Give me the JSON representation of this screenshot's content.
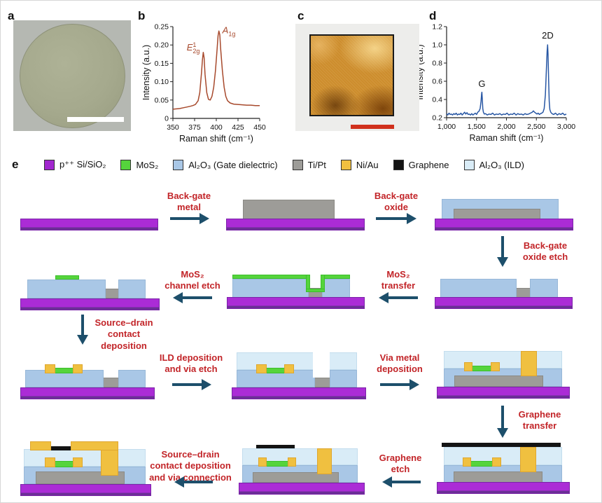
{
  "figure": {
    "panel_labels": {
      "a": "a",
      "b": "b",
      "c": "c",
      "d": "d",
      "e": "e"
    }
  },
  "colors": {
    "substrate_purple": "#a227cf",
    "mos2_green": "#55d43c",
    "gate_oxide_blue": "#a9c7e6",
    "metal_gray": "#9d9c98",
    "contact_yellow": "#f0c040",
    "graphene_black": "#141414",
    "ild_light_blue": "#d9ecf7",
    "arrow_teal": "#1d4f6b",
    "step_label_red": "#c22428",
    "scale_bar_a": "#ffffff",
    "scale_bar_c": "#d0301c",
    "raman_mos2_line": "#a7492c",
    "raman_graphene_line": "#2857a4"
  },
  "legend": {
    "items": [
      {
        "label": "p⁺⁺ Si/SiO₂",
        "color": "#a227cf"
      },
      {
        "label": "MoS₂",
        "color": "#55d43c"
      },
      {
        "label": "Al₂O₃ (Gate dielectric)",
        "color": "#a9c7e6"
      },
      {
        "label": "Ti/Pt",
        "color": "#9d9c98"
      },
      {
        "label": "Ni/Au",
        "color": "#f0c040"
      },
      {
        "label": "Graphene",
        "color": "#141414"
      },
      {
        "label": "Al₂O₃ (ILD)",
        "color": "#d9ecf7"
      }
    ]
  },
  "steps": {
    "back_gate_metal": "Back-gate\nmetal",
    "back_gate_oxide": "Back-gate\noxide",
    "back_gate_oxide_etch": "Back-gate\noxide etch",
    "mos2_transfer": "MoS₂\ntransfer",
    "mos2_channel_etch": "MoS₂\nchannel etch",
    "sd_contact_deposition": "Source–drain\ncontact\ndeposition",
    "ild_deposition_via_etch": "ILD deposition\nand via etch",
    "via_metal_deposition": "Via metal\ndeposition",
    "graphene_transfer": "Graphene\ntransfer",
    "graphene_etch": "Graphene\netch",
    "sd_contact_via_connection": "Source–drain\ncontact deposition\nand via connection"
  },
  "chart_data": [
    {
      "id": "raman_mos2",
      "type": "line",
      "panel": "b",
      "xlabel": "Raman shift (cm⁻¹)",
      "ylabel": "Intensity (a.u.)",
      "xlim": [
        350,
        450
      ],
      "ylim": [
        0,
        0.25
      ],
      "xticks": [
        350,
        375,
        400,
        425,
        450
      ],
      "xtick_labels": [
        "350",
        "375",
        "400",
        "425",
        "450"
      ],
      "yticks": [
        0,
        0.05,
        0.1,
        0.15,
        0.2,
        0.25
      ],
      "ytick_labels": [
        "0",
        "0.05",
        "0.10",
        "0.15",
        "0.20",
        "0.25"
      ],
      "line_color": "#a7492c",
      "grid": false,
      "annotations": [
        {
          "base": "E",
          "sup": "1",
          "sub": "2g",
          "italic": true,
          "x": 381,
          "y": 0.185,
          "anchor": "end",
          "color": "#a7492c"
        },
        {
          "base": "A",
          "sub": "1g",
          "italic": true,
          "x": 407,
          "y": 0.232,
          "anchor": "start",
          "color": "#a7492c"
        }
      ],
      "points": [
        [
          350,
          0.025
        ],
        [
          354,
          0.026
        ],
        [
          358,
          0.027
        ],
        [
          362,
          0.029
        ],
        [
          366,
          0.031
        ],
        [
          370,
          0.033
        ],
        [
          373,
          0.035
        ],
        [
          376,
          0.038
        ],
        [
          379,
          0.048
        ],
        [
          381,
          0.07
        ],
        [
          383,
          0.125
        ],
        [
          384,
          0.16
        ],
        [
          385,
          0.18
        ],
        [
          386,
          0.165
        ],
        [
          387,
          0.12
        ],
        [
          389,
          0.07
        ],
        [
          391,
          0.052
        ],
        [
          393,
          0.05
        ],
        [
          395,
          0.06
        ],
        [
          397,
          0.085
        ],
        [
          399,
          0.13
        ],
        [
          401,
          0.19
        ],
        [
          402,
          0.225
        ],
        [
          403,
          0.238
        ],
        [
          404,
          0.228
        ],
        [
          405,
          0.19
        ],
        [
          407,
          0.13
        ],
        [
          409,
          0.085
        ],
        [
          411,
          0.06
        ],
        [
          413,
          0.048
        ],
        [
          416,
          0.042
        ],
        [
          420,
          0.039
        ],
        [
          425,
          0.038
        ],
        [
          430,
          0.037
        ],
        [
          435,
          0.036
        ],
        [
          440,
          0.036
        ],
        [
          445,
          0.035
        ],
        [
          450,
          0.035
        ]
      ]
    },
    {
      "id": "raman_graphene",
      "type": "line",
      "panel": "d",
      "xlabel": "Raman shift (cm⁻¹)",
      "ylabel": "Intensity (a.u.)",
      "xlim": [
        1000,
        3000
      ],
      "ylim": [
        0.2,
        1.2
      ],
      "xticks": [
        1000,
        1500,
        2000,
        2500,
        3000
      ],
      "xtick_labels": [
        "1,000",
        "1,500",
        "2,000",
        "2,500",
        "3,000"
      ],
      "yticks": [
        0.2,
        0.4,
        0.6,
        0.8,
        1.0,
        1.2
      ],
      "ytick_labels": [
        "0.2",
        "0.4",
        "0.6",
        "0.8",
        "1.0",
        "1.2"
      ],
      "line_color": "#2857a4",
      "grid": false,
      "annotations": [
        {
          "base": "G",
          "x": 1590,
          "y": 0.54,
          "anchor": "middle",
          "color": "#111111"
        },
        {
          "base": "2D",
          "x": 2690,
          "y": 1.07,
          "anchor": "middle",
          "color": "#111111"
        }
      ],
      "points": [
        [
          1000,
          0.245
        ],
        [
          1020,
          0.23
        ],
        [
          1040,
          0.25
        ],
        [
          1060,
          0.235
        ],
        [
          1080,
          0.24
        ],
        [
          1100,
          0.23
        ],
        [
          1120,
          0.245
        ],
        [
          1140,
          0.235
        ],
        [
          1160,
          0.25
        ],
        [
          1180,
          0.23
        ],
        [
          1200,
          0.24
        ],
        [
          1220,
          0.235
        ],
        [
          1240,
          0.25
        ],
        [
          1260,
          0.23
        ],
        [
          1280,
          0.245
        ],
        [
          1300,
          0.26
        ],
        [
          1320,
          0.24
        ],
        [
          1340,
          0.255
        ],
        [
          1360,
          0.235
        ],
        [
          1380,
          0.24
        ],
        [
          1400,
          0.23
        ],
        [
          1420,
          0.245
        ],
        [
          1440,
          0.23
        ],
        [
          1460,
          0.24
        ],
        [
          1480,
          0.25
        ],
        [
          1500,
          0.235
        ],
        [
          1520,
          0.26
        ],
        [
          1540,
          0.27
        ],
        [
          1560,
          0.3
        ],
        [
          1575,
          0.38
        ],
        [
          1585,
          0.46
        ],
        [
          1590,
          0.48
        ],
        [
          1595,
          0.42
        ],
        [
          1605,
          0.3
        ],
        [
          1615,
          0.26
        ],
        [
          1630,
          0.24
        ],
        [
          1650,
          0.245
        ],
        [
          1680,
          0.23
        ],
        [
          1710,
          0.24
        ],
        [
          1740,
          0.235
        ],
        [
          1770,
          0.25
        ],
        [
          1800,
          0.23
        ],
        [
          1830,
          0.24
        ],
        [
          1860,
          0.235
        ],
        [
          1890,
          0.245
        ],
        [
          1920,
          0.23
        ],
        [
          1950,
          0.24
        ],
        [
          1980,
          0.235
        ],
        [
          2010,
          0.25
        ],
        [
          2040,
          0.23
        ],
        [
          2070,
          0.24
        ],
        [
          2100,
          0.235
        ],
        [
          2130,
          0.25
        ],
        [
          2160,
          0.23
        ],
        [
          2190,
          0.245
        ],
        [
          2220,
          0.235
        ],
        [
          2250,
          0.24
        ],
        [
          2280,
          0.23
        ],
        [
          2310,
          0.245
        ],
        [
          2340,
          0.235
        ],
        [
          2370,
          0.24
        ],
        [
          2400,
          0.25
        ],
        [
          2430,
          0.26
        ],
        [
          2450,
          0.275
        ],
        [
          2470,
          0.26
        ],
        [
          2490,
          0.25
        ],
        [
          2510,
          0.24
        ],
        [
          2530,
          0.25
        ],
        [
          2550,
          0.235
        ],
        [
          2570,
          0.245
        ],
        [
          2590,
          0.25
        ],
        [
          2610,
          0.26
        ],
        [
          2630,
          0.3
        ],
        [
          2650,
          0.45
        ],
        [
          2665,
          0.7
        ],
        [
          2680,
          0.93
        ],
        [
          2688,
          1.0
        ],
        [
          2695,
          0.9
        ],
        [
          2705,
          0.6
        ],
        [
          2715,
          0.38
        ],
        [
          2725,
          0.29
        ],
        [
          2740,
          0.26
        ],
        [
          2760,
          0.245
        ],
        [
          2790,
          0.235
        ],
        [
          2820,
          0.25
        ],
        [
          2850,
          0.23
        ],
        [
          2880,
          0.245
        ],
        [
          2910,
          0.235
        ],
        [
          2940,
          0.25
        ],
        [
          2970,
          0.23
        ],
        [
          3000,
          0.24
        ]
      ]
    }
  ]
}
